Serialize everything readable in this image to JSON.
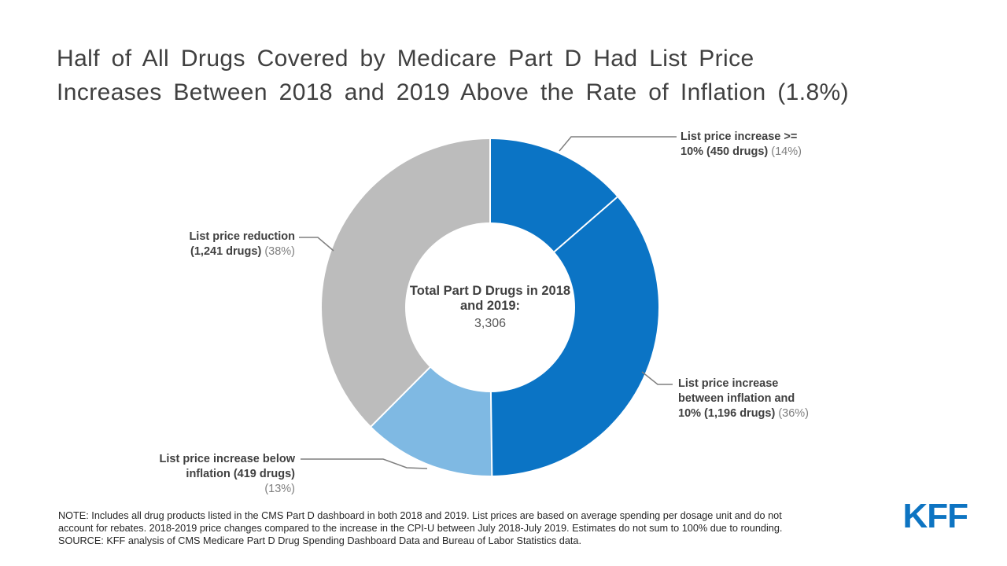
{
  "title": {
    "lines": [
      "Half of All Drugs Covered by Medicare Part D Had List Price",
      "Increases Between 2018 and 2019 Above the Rate of Inflation (1.8%)"
    ]
  },
  "chart_data": {
    "type": "pie",
    "subtype": "donut",
    "title": "Half of All Drugs Covered by Medicare Part D Had List Price Increases Between 2018 and 2019 Above the Rate of Inflation (1.8%)",
    "center_label": "Total Part D Drugs in 2018 and 2019:",
    "center_value": "3,306",
    "total_drugs": 3306,
    "start_angle_deg": 0,
    "direction": "clockwise",
    "slices": [
      {
        "name": "List price increase >= 10%",
        "drugs": 450,
        "percent_label": "14%",
        "color": "#0b74c5"
      },
      {
        "name": "List price increase between inflation and 10%",
        "drugs": 1196,
        "percent_label": "36%",
        "color": "#0b74c5"
      },
      {
        "name": "List price increase below inflation",
        "drugs": 419,
        "percent_label": "13%",
        "color": "#7fb9e3"
      },
      {
        "name": "List price reduction",
        "drugs": 1241,
        "percent_label": "38%",
        "color": "#bcbcbc"
      }
    ],
    "slice_border_color": "#ffffff",
    "callout_line_color": "#7f7f7f"
  },
  "callouts": [
    {
      "align": "left",
      "lines": [
        [
          {
            "t": "List price increase >=",
            "bold": true
          }
        ],
        [
          {
            "t": "10% (450 drugs) ",
            "bold": true
          },
          {
            "t": "(14%)",
            "bold": false
          }
        ]
      ]
    },
    {
      "align": "right",
      "lines": [
        [
          {
            "t": "List price reduction",
            "bold": true
          }
        ],
        [
          {
            "t": "(1,241 drugs) ",
            "bold": true
          },
          {
            "t": "(38%)",
            "bold": false
          }
        ]
      ]
    },
    {
      "align": "left",
      "lines": [
        [
          {
            "t": "List price increase",
            "bold": true
          }
        ],
        [
          {
            "t": "between inflation and",
            "bold": true
          }
        ],
        [
          {
            "t": "10% (1,196 drugs) ",
            "bold": true
          },
          {
            "t": "(36%)",
            "bold": false
          }
        ]
      ]
    },
    {
      "align": "right",
      "lines": [
        [
          {
            "t": "List price increase below",
            "bold": true
          }
        ],
        [
          {
            "t": "inflation (419 drugs)",
            "bold": true
          }
        ],
        [
          {
            "t": "(13%)",
            "bold": false
          }
        ]
      ]
    }
  ],
  "note": {
    "lines": [
      "NOTE: Includes all drug products listed in the CMS Part D dashboard in both 2018 and 2019. List prices are based on average spending per dosage unit and do not",
      "account for rebates. 2018-2019 price changes compared to the increase in the CPI-U between July 2018-July 2019. Estimates do not sum to 100% due to rounding.",
      "SOURCE: KFF analysis of CMS Medicare Part D Drug Spending Dashboard Data and Bureau of Labor Statistics data."
    ]
  },
  "logo": {
    "text": "KFF",
    "color": "#0d74c2"
  }
}
